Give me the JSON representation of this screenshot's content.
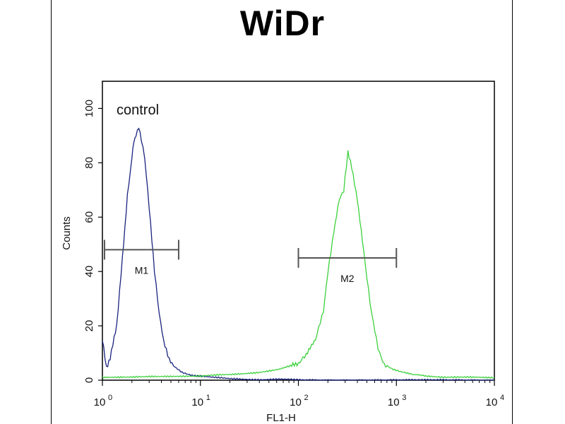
{
  "chart_data": {
    "type": "line",
    "title": "WiDr",
    "xlabel": "FL1-H",
    "ylabel": "Counts",
    "xscale": "log",
    "xlim": [
      1,
      10000
    ],
    "ylim": [
      0,
      110
    ],
    "yticks": [
      0,
      20,
      40,
      60,
      80,
      100
    ],
    "xticks": [
      {
        "base": "10",
        "exp": "0"
      },
      {
        "base": "10",
        "exp": "1"
      },
      {
        "base": "10",
        "exp": "2"
      },
      {
        "base": "10",
        "exp": "3"
      },
      {
        "base": "10",
        "exp": "4"
      }
    ],
    "annotation": "control",
    "series": [
      {
        "color": "#1a237e",
        "x": [
          1.0,
          1.1,
          1.2,
          1.4,
          1.6,
          1.8,
          2.0,
          2.1,
          2.2,
          2.35,
          2.5,
          2.7,
          2.9,
          3.1,
          3.4,
          3.8,
          4.2,
          4.8,
          5.5,
          6.5,
          8,
          10,
          13,
          20,
          40,
          100,
          1000,
          10000
        ],
        "y": [
          15,
          5,
          8,
          20,
          45,
          68,
          82,
          88,
          90,
          93,
          88,
          82,
          70,
          58,
          40,
          25,
          15,
          8,
          5,
          3,
          2,
          1.5,
          1,
          0.5,
          0.3,
          0.2,
          0,
          0
        ]
      },
      {
        "color": "#3cd13c",
        "x": [
          1,
          3,
          10,
          20,
          40,
          60,
          80,
          100,
          120,
          150,
          180,
          200,
          230,
          260,
          290,
          320,
          350,
          400,
          450,
          500,
          560,
          650,
          750,
          900,
          1100,
          1500,
          2000,
          3000,
          5000,
          10000
        ],
        "y": [
          1,
          1.5,
          1.5,
          2,
          3,
          4,
          5,
          6,
          9,
          15,
          25,
          40,
          55,
          66,
          70,
          84,
          78,
          66,
          52,
          38,
          24,
          12,
          6,
          4,
          3,
          2,
          1.5,
          1,
          1,
          1
        ]
      }
    ],
    "markers": [
      {
        "label": "M1",
        "range": [
          1.05,
          6.0
        ],
        "y": 48
      },
      {
        "label": "M2",
        "range": [
          100,
          1000
        ],
        "y": 45
      }
    ]
  }
}
